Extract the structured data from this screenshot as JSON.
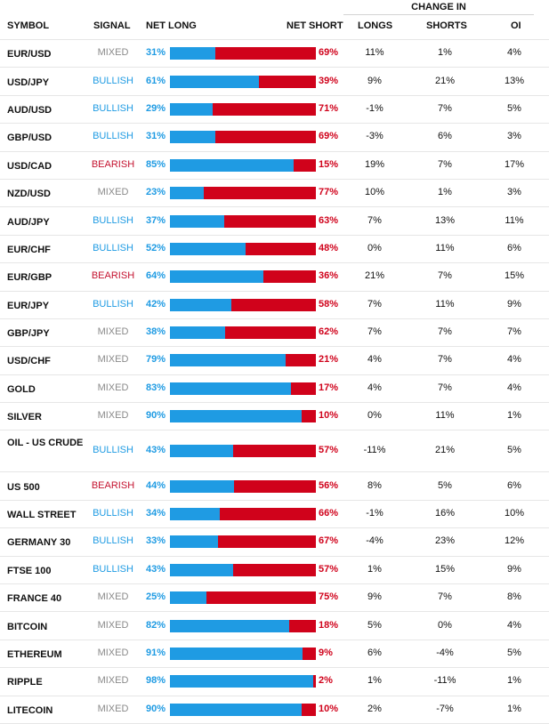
{
  "header": {
    "change_in": "CHANGE IN",
    "symbol": "SYMBOL",
    "signal": "SIGNAL",
    "net_long": "NET LONG",
    "net_short": "NET SHORT",
    "longs": "LONGS",
    "shorts": "SHORTS",
    "oi": "OI"
  },
  "colors": {
    "long": "#1f9be3",
    "short": "#d0021b",
    "mixed": "#8a8a8a",
    "bearish": "#c4122f"
  },
  "rows": [
    {
      "symbol": "EUR/USD",
      "signal": "MIXED",
      "net_long": "31%",
      "net_short": "69%",
      "longs": "11%",
      "shorts": "1%",
      "oi": "4%",
      "long_fraction": 0.31
    },
    {
      "symbol": "USD/JPY",
      "signal": "BULLISH",
      "net_long": "61%",
      "net_short": "39%",
      "longs": "9%",
      "shorts": "21%",
      "oi": "13%",
      "long_fraction": 0.61
    },
    {
      "symbol": "AUD/USD",
      "signal": "BULLISH",
      "net_long": "29%",
      "net_short": "71%",
      "longs": "-1%",
      "shorts": "7%",
      "oi": "5%",
      "long_fraction": 0.29
    },
    {
      "symbol": "GBP/USD",
      "signal": "BULLISH",
      "net_long": "31%",
      "net_short": "69%",
      "longs": "-3%",
      "shorts": "6%",
      "oi": "3%",
      "long_fraction": 0.31
    },
    {
      "symbol": "USD/CAD",
      "signal": "BEARISH",
      "net_long": "85%",
      "net_short": "15%",
      "longs": "19%",
      "shorts": "7%",
      "oi": "17%",
      "long_fraction": 0.85
    },
    {
      "symbol": "NZD/USD",
      "signal": "MIXED",
      "net_long": "23%",
      "net_short": "77%",
      "longs": "10%",
      "shorts": "1%",
      "oi": "3%",
      "long_fraction": 0.23
    },
    {
      "symbol": "AUD/JPY",
      "signal": "BULLISH",
      "net_long": "37%",
      "net_short": "63%",
      "longs": "7%",
      "shorts": "13%",
      "oi": "11%",
      "long_fraction": 0.37
    },
    {
      "symbol": "EUR/CHF",
      "signal": "BULLISH",
      "net_long": "52%",
      "net_short": "48%",
      "longs": "0%",
      "shorts": "11%",
      "oi": "6%",
      "long_fraction": 0.52
    },
    {
      "symbol": "EUR/GBP",
      "signal": "BEARISH",
      "net_long": "64%",
      "net_short": "36%",
      "longs": "21%",
      "shorts": "7%",
      "oi": "15%",
      "long_fraction": 0.64
    },
    {
      "symbol": "EUR/JPY",
      "signal": "BULLISH",
      "net_long": "42%",
      "net_short": "58%",
      "longs": "7%",
      "shorts": "11%",
      "oi": "9%",
      "long_fraction": 0.42
    },
    {
      "symbol": "GBP/JPY",
      "signal": "MIXED",
      "net_long": "38%",
      "net_short": "62%",
      "longs": "7%",
      "shorts": "7%",
      "oi": "7%",
      "long_fraction": 0.38
    },
    {
      "symbol": "USD/CHF",
      "signal": "MIXED",
      "net_long": "79%",
      "net_short": "21%",
      "longs": "4%",
      "shorts": "7%",
      "oi": "4%",
      "long_fraction": 0.79
    },
    {
      "symbol": "GOLD",
      "signal": "MIXED",
      "net_long": "83%",
      "net_short": "17%",
      "longs": "4%",
      "shorts": "7%",
      "oi": "4%",
      "long_fraction": 0.83
    },
    {
      "symbol": "SILVER",
      "signal": "MIXED",
      "net_long": "90%",
      "net_short": "10%",
      "longs": "0%",
      "shorts": "11%",
      "oi": "1%",
      "long_fraction": 0.9
    },
    {
      "symbol": "OIL - US CRUDE",
      "signal": "BULLISH",
      "net_long": "43%",
      "net_short": "57%",
      "longs": "-11%",
      "shorts": "21%",
      "oi": "5%",
      "long_fraction": 0.43,
      "tall": true
    },
    {
      "symbol": "US 500",
      "signal": "BEARISH",
      "net_long": "44%",
      "net_short": "56%",
      "longs": "8%",
      "shorts": "5%",
      "oi": "6%",
      "long_fraction": 0.44
    },
    {
      "symbol": "WALL STREET",
      "signal": "BULLISH",
      "net_long": "34%",
      "net_short": "66%",
      "longs": "-1%",
      "shorts": "16%",
      "oi": "10%",
      "long_fraction": 0.34
    },
    {
      "symbol": "GERMANY 30",
      "signal": "BULLISH",
      "net_long": "33%",
      "net_short": "67%",
      "longs": "-4%",
      "shorts": "23%",
      "oi": "12%",
      "long_fraction": 0.33
    },
    {
      "symbol": "FTSE 100",
      "signal": "BULLISH",
      "net_long": "43%",
      "net_short": "57%",
      "longs": "1%",
      "shorts": "15%",
      "oi": "9%",
      "long_fraction": 0.43
    },
    {
      "symbol": "FRANCE 40",
      "signal": "MIXED",
      "net_long": "25%",
      "net_short": "75%",
      "longs": "9%",
      "shorts": "7%",
      "oi": "8%",
      "long_fraction": 0.25
    },
    {
      "symbol": "BITCOIN",
      "signal": "MIXED",
      "net_long": "82%",
      "net_short": "18%",
      "longs": "5%",
      "shorts": "0%",
      "oi": "4%",
      "long_fraction": 0.82
    },
    {
      "symbol": "ETHEREUM",
      "signal": "MIXED",
      "net_long": "91%",
      "net_short": "9%",
      "longs": "6%",
      "shorts": "-4%",
      "oi": "5%",
      "long_fraction": 0.91
    },
    {
      "symbol": "RIPPLE",
      "signal": "MIXED",
      "net_long": "98%",
      "net_short": "2%",
      "longs": "1%",
      "shorts": "-11%",
      "oi": "1%",
      "long_fraction": 0.98
    },
    {
      "symbol": "LITECOIN",
      "signal": "MIXED",
      "net_long": "90%",
      "net_short": "10%",
      "longs": "2%",
      "shorts": "-7%",
      "oi": "1%",
      "long_fraction": 0.9
    }
  ]
}
